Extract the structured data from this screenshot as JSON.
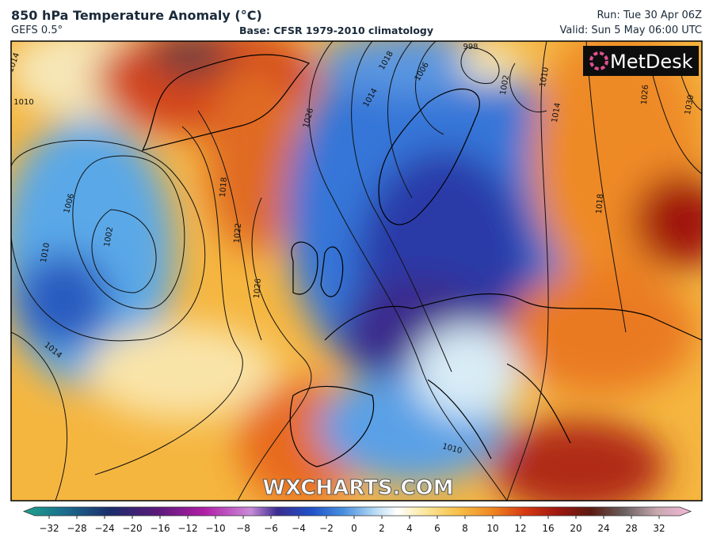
{
  "header": {
    "title": "850 hPa Temperature Anomaly (°C)",
    "model": "GEFS 0.5°",
    "base": "Base: CFSR 1979-2010 climatology",
    "run": "Run: Tue 30 Apr 06Z",
    "valid": "Valid: Sun 5 May 06:00 UTC"
  },
  "logo": "MetDesk",
  "watermark": "WXCHARTS.COM",
  "isobar_labels": [
    "1014",
    "1010",
    "1006",
    "1002",
    "1010",
    "1014",
    "1018",
    "1022",
    "1026",
    "1026",
    "1018",
    "1014",
    "1006",
    "998",
    "1002",
    "1010",
    "1014",
    "1018",
    "1026",
    "1030",
    "1010"
  ],
  "colorbar": {
    "ticks": [
      "−32",
      "−28",
      "−24",
      "−20",
      "−16",
      "−12",
      "−10",
      "−8",
      "−6",
      "−4",
      "−2",
      "0",
      "2",
      "4",
      "6",
      "8",
      "10",
      "12",
      "16",
      "20",
      "24",
      "28",
      "32"
    ]
  }
}
